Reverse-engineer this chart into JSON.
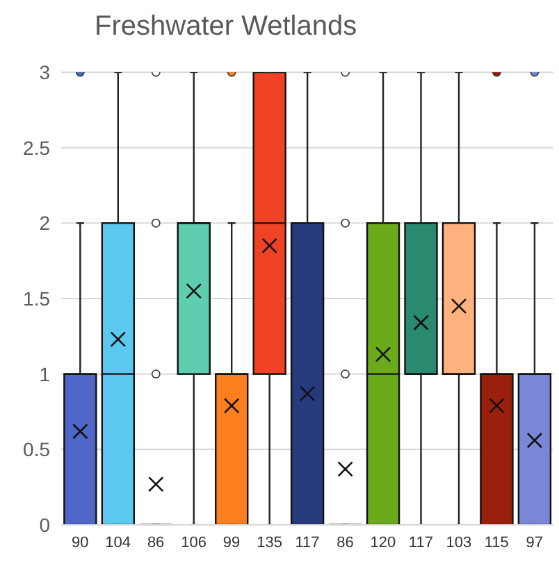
{
  "chart_data": {
    "type": "box",
    "title": "Freshwater Wetlands",
    "categories": [
      "90",
      "104",
      "86",
      "106",
      "99",
      "135",
      "117",
      "86",
      "120",
      "117",
      "103",
      "115",
      "97"
    ],
    "colors": [
      "#4f67c8",
      "#5bc8f0",
      "#ffffff",
      "#5ecdb0",
      "#fb7e1f",
      "#f04225",
      "#263a7e",
      "#ffffff",
      "#6aaa1b",
      "#2a8a70",
      "#ffb17e",
      "#9a1f0c",
      "#7888d6"
    ],
    "boxes": [
      {
        "low": 0,
        "q1": 0,
        "median": 1,
        "q3": 1,
        "high": 2,
        "mean": 0.62,
        "outliers": [
          3
        ]
      },
      {
        "low": 0,
        "q1": 0,
        "median": 1,
        "q3": 2,
        "high": 3,
        "mean": 1.23
      },
      {
        "low": 0,
        "q1": 0,
        "median": 0,
        "q3": 0,
        "high": 0,
        "mean": 0.27,
        "outliers": [
          1,
          2,
          3
        ]
      },
      {
        "low": 0,
        "q1": 1,
        "median": 2,
        "q3": 2,
        "high": 3,
        "mean": 1.55
      },
      {
        "low": 0,
        "q1": 0,
        "median": 1,
        "q3": 1,
        "high": 2,
        "mean": 0.79,
        "outliers": [
          3
        ]
      },
      {
        "low": 0,
        "q1": 1,
        "median": 2,
        "q3": 3,
        "high": 3,
        "mean": 1.85
      },
      {
        "low": 0,
        "q1": 0,
        "median": 0,
        "q3": 2,
        "high": 3,
        "mean": 0.87
      },
      {
        "low": 0,
        "q1": 0,
        "median": 0,
        "q3": 0,
        "high": 0,
        "mean": 0.37,
        "outliers": [
          1,
          2,
          3
        ]
      },
      {
        "low": 0,
        "q1": 0,
        "median": 1,
        "q3": 2,
        "high": 3,
        "mean": 1.13
      },
      {
        "low": 0,
        "q1": 1,
        "median": 1,
        "q3": 2,
        "high": 3,
        "mean": 1.34
      },
      {
        "low": 0,
        "q1": 1,
        "median": 1,
        "q3": 2,
        "high": 3,
        "mean": 1.45
      },
      {
        "low": 0,
        "q1": 0,
        "median": 1,
        "q3": 1,
        "high": 2,
        "mean": 0.79,
        "outliers": [
          3
        ]
      },
      {
        "low": 0,
        "q1": 0,
        "median": 1,
        "q3": 1,
        "high": 2,
        "mean": 0.56,
        "outliers": [
          3
        ]
      }
    ],
    "ylim": [
      0,
      3
    ],
    "yticks": [
      0,
      0.5,
      1,
      1.5,
      2,
      2.5,
      3
    ],
    "grid": "y"
  }
}
